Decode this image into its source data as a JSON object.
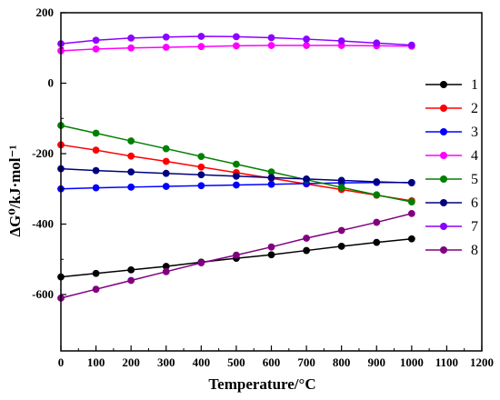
{
  "chart_data": {
    "type": "line",
    "title": "",
    "xlabel": "Temperature/°C",
    "ylabel": "ΔG⁰/kJ·mol⁻¹",
    "xlim": [
      0,
      1200
    ],
    "ylim": [
      -760,
      200
    ],
    "x_ticks": [
      0,
      100,
      200,
      300,
      400,
      500,
      600,
      700,
      800,
      900,
      1000,
      1100,
      1200
    ],
    "y_ticks": [
      -600,
      -400,
      -200,
      0,
      200
    ],
    "grid": false,
    "legend_position": "right",
    "x": [
      0,
      100,
      200,
      300,
      400,
      500,
      600,
      700,
      800,
      900,
      1000
    ],
    "series": [
      {
        "name": "1",
        "color": "#000000",
        "values": [
          -550,
          -540,
          -530,
          -520,
          -508,
          -497,
          -487,
          -475,
          -463,
          -452,
          -442
        ]
      },
      {
        "name": "2",
        "color": "#ff0000",
        "values": [
          -175,
          -190,
          -207,
          -222,
          -238,
          -254,
          -270,
          -286,
          -302,
          -318,
          -334
        ]
      },
      {
        "name": "3",
        "color": "#0000ff",
        "values": [
          -300,
          -297,
          -295,
          -293,
          -291,
          -289,
          -287,
          -285,
          -283,
          -282,
          -282
        ]
      },
      {
        "name": "4",
        "color": "#ff00ff",
        "values": [
          92,
          97,
          100,
          102,
          104,
          106,
          107,
          107,
          107,
          106,
          105
        ]
      },
      {
        "name": "5",
        "color": "#008000",
        "values": [
          -120,
          -142,
          -164,
          -186,
          -208,
          -230,
          -252,
          -274,
          -296,
          -317,
          -337
        ]
      },
      {
        "name": "6",
        "color": "#000080",
        "values": [
          -243,
          -248,
          -252,
          -256,
          -260,
          -264,
          -268,
          -272,
          -276,
          -280,
          -283
        ]
      },
      {
        "name": "7",
        "color": "#8b00ff",
        "values": [
          112,
          122,
          128,
          131,
          133,
          132,
          129,
          125,
          120,
          114,
          108
        ]
      },
      {
        "name": "8",
        "color": "#800080",
        "values": [
          -610,
          -585,
          -560,
          -535,
          -510,
          -488,
          -465,
          -440,
          -418,
          -395,
          -370
        ]
      }
    ]
  }
}
